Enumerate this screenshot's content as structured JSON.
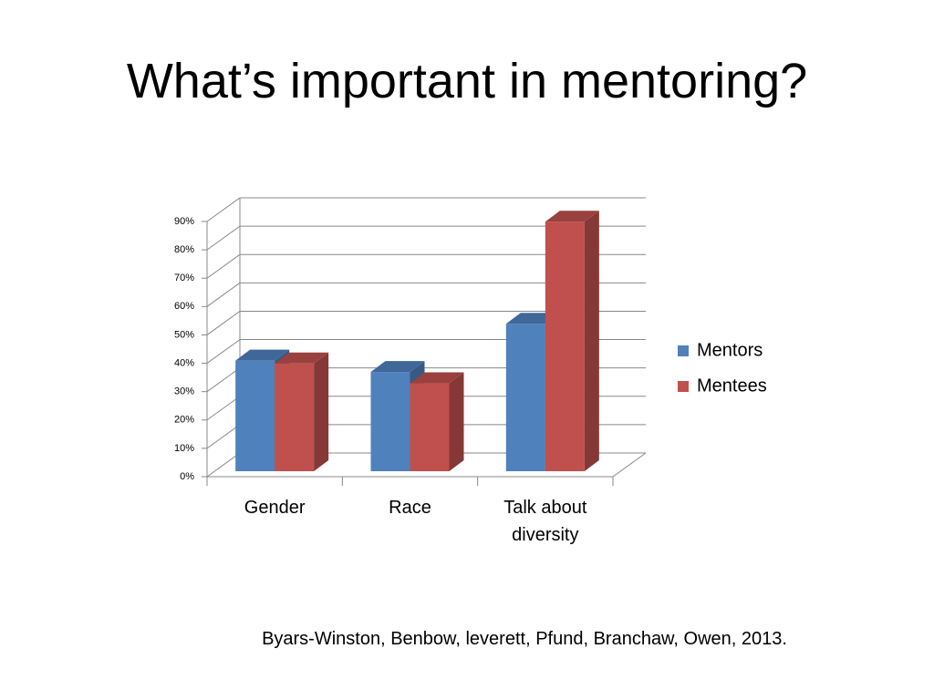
{
  "title": "What’s important in mentoring?",
  "citation": "Byars-Winston, Benbow, leverett, Pfund, Branchaw, Owen, 2013.",
  "chart_data": {
    "type": "bar3d",
    "categories": [
      "Gender",
      "Race",
      "Talk about diversity"
    ],
    "series": [
      {
        "name": "Mentors",
        "color": "#4f81bd",
        "values": [
          39,
          35,
          52
        ]
      },
      {
        "name": "Mentees",
        "color": "#c0504d",
        "values": [
          38,
          31,
          88
        ]
      }
    ],
    "ylim": [
      0,
      90
    ],
    "yticks": [
      {
        "value": 0,
        "label": "0%"
      },
      {
        "value": 10,
        "label": "10%"
      },
      {
        "value": 20,
        "label": "20%"
      },
      {
        "value": 30,
        "label": "30%"
      },
      {
        "value": 40,
        "label": "40%"
      },
      {
        "value": 50,
        "label": "50%"
      },
      {
        "value": 60,
        "label": "60%"
      },
      {
        "value": 70,
        "label": "70%"
      },
      {
        "value": 80,
        "label": "80%"
      },
      {
        "value": 90,
        "label": "90%"
      }
    ],
    "grid": true,
    "legend": "right"
  }
}
